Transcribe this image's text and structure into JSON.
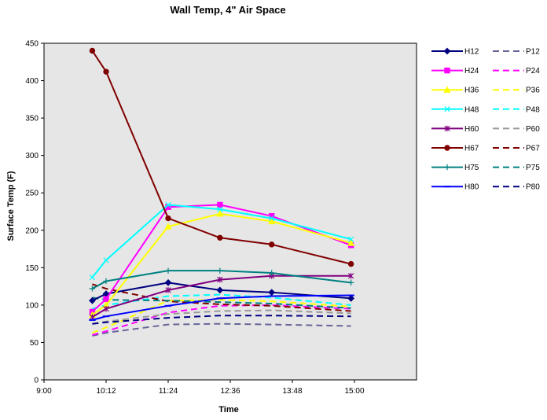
{
  "chart_data": {
    "type": "line",
    "title": "Wall Temp, 4\" Air Space",
    "xlabel": "Time",
    "ylabel": "Surface Temp (F)",
    "xlim": [
      "9:00",
      "16:12"
    ],
    "ylim": [
      0,
      450
    ],
    "xticks": [
      "9:00",
      "10:12",
      "11:24",
      "12:36",
      "13:48",
      "15:00"
    ],
    "yticks": [
      "0",
      "50",
      "100",
      "150",
      "200",
      "250",
      "300",
      "350",
      "400",
      "450"
    ],
    "plot_background": "#e6e6e6",
    "grid": false,
    "legend_position": "right",
    "series": [
      {
        "name": "H12",
        "color": "#000080",
        "style": "solid",
        "marker": "diamond",
        "x": [
          "9:56",
          "10:12",
          "11:24",
          "12:24",
          "13:24",
          "14:56"
        ],
        "values": [
          106,
          115,
          130,
          120,
          117,
          109
        ]
      },
      {
        "name": "H24",
        "color": "#ff00ff",
        "style": "solid",
        "marker": "square",
        "x": [
          "9:56",
          "10:12",
          "11:24",
          "12:24",
          "13:24",
          "14:56"
        ],
        "values": [
          91,
          108,
          231,
          234,
          219,
          180
        ]
      },
      {
        "name": "H36",
        "color": "#ffff00",
        "style": "solid",
        "marker": "triangle",
        "x": [
          "9:56",
          "10:12",
          "11:24",
          "12:24",
          "13:24",
          "14:56"
        ],
        "values": [
          87,
          100,
          205,
          222,
          212,
          183
        ]
      },
      {
        "name": "H48",
        "color": "#00ffff",
        "style": "solid",
        "marker": "x",
        "x": [
          "9:56",
          "10:12",
          "11:24",
          "12:24",
          "13:24",
          "14:56"
        ],
        "values": [
          137,
          160,
          234,
          228,
          216,
          188
        ]
      },
      {
        "name": "H60",
        "color": "#800080",
        "style": "solid",
        "marker": "star",
        "x": [
          "9:56",
          "10:12",
          "11:24",
          "12:24",
          "13:24",
          "14:56"
        ],
        "values": [
          84,
          95,
          120,
          134,
          139,
          139
        ]
      },
      {
        "name": "H67",
        "color": "#800000",
        "style": "solid",
        "marker": "circle",
        "x": [
          "9:56",
          "10:12",
          "11:24",
          "12:24",
          "13:24",
          "14:56"
        ],
        "values": [
          440,
          412,
          216,
          190,
          181,
          155
        ]
      },
      {
        "name": "H75",
        "color": "#008080",
        "style": "solid",
        "marker": "plus",
        "x": [
          "9:56",
          "10:12",
          "11:24",
          "12:24",
          "13:24",
          "14:56"
        ],
        "values": [
          122,
          132,
          146,
          146,
          143,
          130
        ]
      },
      {
        "name": "H80",
        "color": "#0000ff",
        "style": "solid",
        "marker": "dash",
        "x": [
          "9:56",
          "10:12",
          "11:24",
          "12:24",
          "13:24",
          "14:56"
        ],
        "values": [
          80,
          85,
          99,
          109,
          112,
          113
        ]
      },
      {
        "name": "P12",
        "color": "#666699",
        "style": "dashed",
        "marker": "none",
        "x": [
          "9:56",
          "10:12",
          "11:24",
          "12:24",
          "13:24",
          "14:56"
        ],
        "values": [
          59,
          63,
          74,
          75,
          74,
          72
        ]
      },
      {
        "name": "P24",
        "color": "#ff00ff",
        "style": "dashed",
        "marker": "none",
        "x": [
          "9:56",
          "10:12",
          "11:24",
          "12:24",
          "13:24",
          "14:56"
        ],
        "values": [
          60,
          65,
          90,
          99,
          100,
          95
        ]
      },
      {
        "name": "P36",
        "color": "#ffff00",
        "style": "dashed",
        "marker": "none",
        "x": [
          "9:56",
          "10:12",
          "11:24",
          "12:24",
          "13:24",
          "14:56"
        ],
        "values": [
          63,
          70,
          106,
          107,
          105,
          98
        ]
      },
      {
        "name": "P48",
        "color": "#00ffff",
        "style": "dashed",
        "marker": "none",
        "x": [
          "9:56",
          "10:12",
          "11:24",
          "12:24",
          "13:24",
          "14:56"
        ],
        "values": [
          95,
          100,
          112,
          114,
          110,
          100
        ]
      },
      {
        "name": "P60",
        "color": "#999999",
        "style": "dashed",
        "marker": "none",
        "x": [
          "9:56",
          "10:12",
          "11:24",
          "12:24",
          "13:24",
          "14:56"
        ],
        "values": [
          75,
          78,
          88,
          92,
          93,
          89
        ]
      },
      {
        "name": "P67",
        "color": "#800000",
        "style": "dashed",
        "marker": "none",
        "x": [
          "9:56",
          "10:12",
          "11:24",
          "12:24",
          "13:24",
          "14:56"
        ],
        "values": [
          128,
          122,
          105,
          101,
          99,
          92
        ]
      },
      {
        "name": "P75",
        "color": "#008080",
        "style": "dashed",
        "marker": "none",
        "x": [
          "9:56",
          "10:12",
          "11:24",
          "12:24",
          "13:24",
          "14:56"
        ],
        "values": [
          110,
          107,
          106,
          104,
          102,
          96
        ]
      },
      {
        "name": "P80",
        "color": "#000080",
        "style": "dashed",
        "marker": "none",
        "x": [
          "9:56",
          "10:12",
          "11:24",
          "12:24",
          "13:24",
          "14:56"
        ],
        "values": [
          75,
          77,
          83,
          86,
          86,
          85
        ]
      }
    ]
  }
}
